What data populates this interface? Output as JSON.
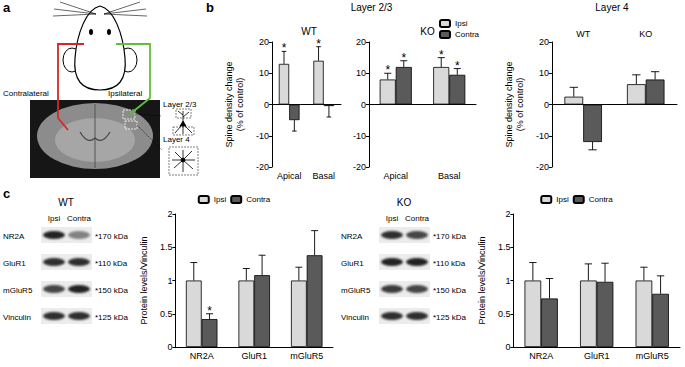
{
  "panel_labels": [
    "a",
    "b",
    "c"
  ],
  "diagram": {
    "left_label": "Contralateral",
    "right_label": "Ipsilateral",
    "layers": [
      "Layer 2/3",
      "Layer 4"
    ]
  },
  "group_headers": [
    "Layer 2/3",
    "Layer 4"
  ],
  "blots": [
    {
      "title": "WT",
      "lanes": [
        "Ipsi",
        "Contra"
      ],
      "rows": [
        {
          "protein": "NR2A",
          "size": "*170 kDa"
        },
        {
          "protein": "GluR1",
          "size": "*110 kDa"
        },
        {
          "protein": "mGluR5",
          "size": "*150 kDa"
        },
        {
          "protein": "Vinculin",
          "size": "*125 kDa"
        }
      ]
    },
    {
      "title": "KO",
      "lanes": [
        "Ipsi",
        "Contra"
      ],
      "rows": [
        {
          "protein": "NR2A",
          "size": "*170 kDa"
        },
        {
          "protein": "GluR1",
          "size": "*110 kDa"
        },
        {
          "protein": "mGluR5",
          "size": "*150 kDa"
        },
        {
          "protein": "Vinculin",
          "size": "*125 kDa"
        }
      ]
    }
  ],
  "chart_data": [
    {
      "type": "bar",
      "title": "WT",
      "ylabel": "Spine density change\n(% of control)",
      "categories": [
        "Apical",
        "Basal"
      ],
      "series": [
        {
          "name": "Ipsi",
          "color": "#d9d9d9",
          "values": [
            13,
            14
          ],
          "errors": [
            4,
            4.5
          ],
          "annotations": [
            "*",
            "*"
          ]
        },
        {
          "name": "Contra",
          "color": "#5a5a5a",
          "values": [
            -5,
            -0.5
          ],
          "errors": [
            3.5,
            3.5
          ],
          "annotations": [
            null,
            null
          ]
        }
      ],
      "ylim": [
        -20,
        20
      ],
      "yticks": [
        -20,
        -10,
        0,
        10,
        20
      ],
      "grid": false
    },
    {
      "type": "bar",
      "title": "KO",
      "categories": [
        "Apical",
        "Basal"
      ],
      "series": [
        {
          "name": "Ipsi",
          "color": "#d9d9d9",
          "values": [
            8,
            12
          ],
          "errors": [
            2,
            3
          ],
          "annotations": [
            "*",
            "*"
          ]
        },
        {
          "name": "Contra",
          "color": "#5a5a5a",
          "values": [
            12,
            9.5
          ],
          "errors": [
            2,
            2
          ],
          "annotations": [
            "*",
            "*"
          ]
        }
      ],
      "ylim": [
        -20,
        20
      ],
      "yticks": [
        -20,
        -10,
        0,
        10,
        20
      ],
      "grid": false,
      "legend": "top-right"
    },
    {
      "type": "bar",
      "ylabel": "Spine density change\n(% of control)",
      "categories": [
        "WT",
        "KO"
      ],
      "series": [
        {
          "name": "Ipsi",
          "color": "#d9d9d9",
          "values": [
            2.5,
            6.5
          ],
          "errors": [
            3,
            3
          ],
          "annotations": [
            null,
            null
          ]
        },
        {
          "name": "Contra",
          "color": "#5a5a5a",
          "values": [
            -12,
            8
          ],
          "errors": [
            2.5,
            2.5
          ],
          "annotations": [
            null,
            null
          ]
        }
      ],
      "ylim": [
        -20,
        20
      ],
      "yticks": [
        -20,
        -10,
        0,
        10,
        20
      ],
      "grid": false
    },
    {
      "type": "bar",
      "ylabel": "Protein levels/Vinculin",
      "categories": [
        "NR2A",
        "GluR1",
        "mGluR5"
      ],
      "series": [
        {
          "name": "Ipsi",
          "color": "#d9d9d9",
          "values": [
            1,
            1,
            1
          ],
          "errors": [
            0.27,
            0.18,
            0.2
          ],
          "annotations": [
            null,
            null,
            null
          ]
        },
        {
          "name": "Contra",
          "color": "#5a5a5a",
          "values": [
            0.42,
            1.08,
            1.38
          ],
          "errors": [
            0.08,
            0.3,
            0.37
          ],
          "annotations": [
            "*",
            null,
            null
          ]
        }
      ],
      "ylim": [
        0,
        2
      ],
      "yticks": [
        0,
        0.5,
        1,
        1.5,
        2
      ],
      "grid": false,
      "legend": "top"
    },
    {
      "type": "bar",
      "ylabel": "Protein levels/Vinculin",
      "categories": [
        "NR2A",
        "GluR1",
        "mGluR5"
      ],
      "series": [
        {
          "name": "Ipsi",
          "color": "#d9d9d9",
          "values": [
            1,
            1,
            1
          ],
          "errors": [
            0.27,
            0.25,
            0.2
          ],
          "annotations": [
            null,
            null,
            null
          ]
        },
        {
          "name": "Contra",
          "color": "#5a5a5a",
          "values": [
            0.73,
            0.98,
            0.8
          ],
          "errors": [
            0.3,
            0.28,
            0.27
          ],
          "annotations": [
            null,
            null,
            null
          ]
        }
      ],
      "ylim": [
        0,
        2
      ],
      "yticks": [
        0,
        0.5,
        1,
        1.5,
        2
      ],
      "grid": false,
      "legend": "top"
    }
  ]
}
